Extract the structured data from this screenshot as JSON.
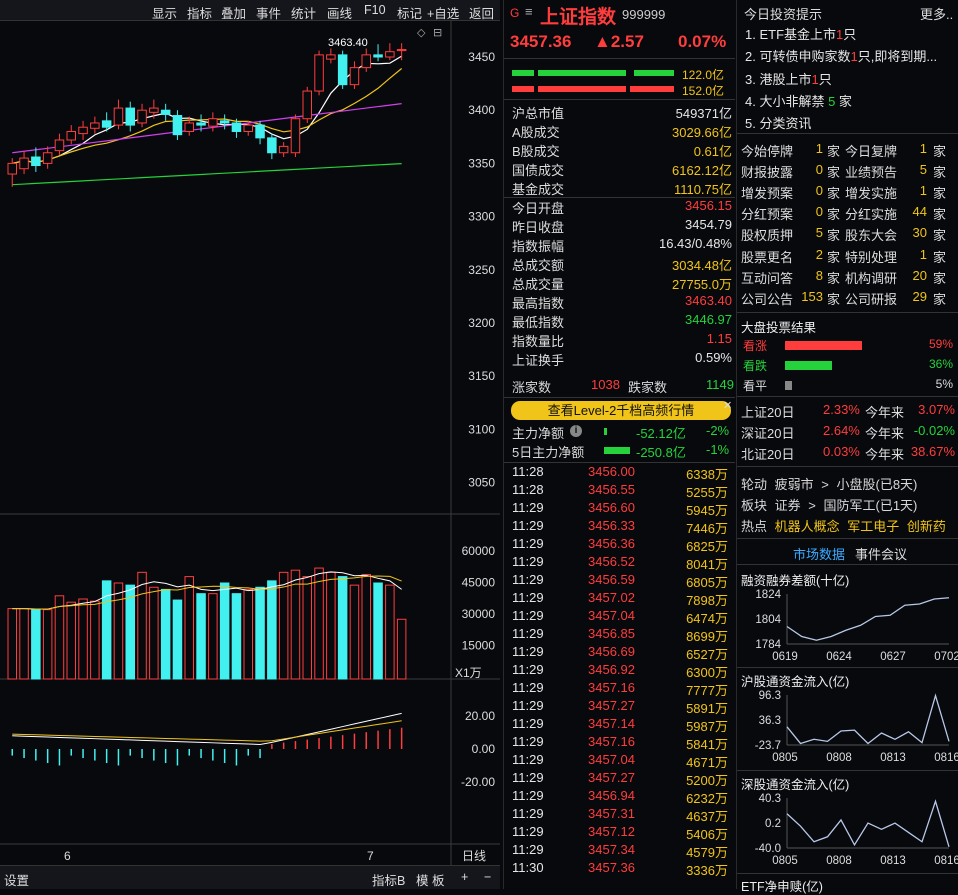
{
  "toolbar": {
    "items": [
      "显示",
      "指标",
      "叠加",
      "事件",
      "统计",
      "画线",
      "F10",
      "标记",
      "+自选",
      "返回"
    ]
  },
  "chart": {
    "price_axis": [
      "3450",
      "3400",
      "3350",
      "3300",
      "3250",
      "3200",
      "3150",
      "3100",
      "3050"
    ],
    "vol_axis": [
      "60000",
      "45000",
      "30000",
      "15000"
    ],
    "vol_unit": "X1万",
    "macd_axis": [
      "20.00",
      "0.00",
      "-20.00"
    ],
    "high_label": "3463.40",
    "x_labels": [
      "6",
      "7"
    ],
    "period": "日线",
    "candles": [
      {
        "o": 3340,
        "c": 3350,
        "h": 3355,
        "l": 3328
      },
      {
        "o": 3345,
        "c": 3355,
        "h": 3362,
        "l": 3340
      },
      {
        "o": 3356,
        "c": 3348,
        "h": 3365,
        "l": 3342
      },
      {
        "o": 3350,
        "c": 3360,
        "h": 3366,
        "l": 3345
      },
      {
        "o": 3362,
        "c": 3372,
        "h": 3378,
        "l": 3358
      },
      {
        "o": 3372,
        "c": 3380,
        "h": 3386,
        "l": 3368
      },
      {
        "o": 3378,
        "c": 3384,
        "h": 3390,
        "l": 3372
      },
      {
        "o": 3383,
        "c": 3388,
        "h": 3394,
        "l": 3378
      },
      {
        "o": 3390,
        "c": 3384,
        "h": 3398,
        "l": 3380
      },
      {
        "o": 3386,
        "c": 3402,
        "h": 3410,
        "l": 3382
      },
      {
        "o": 3402,
        "c": 3386,
        "h": 3408,
        "l": 3380
      },
      {
        "o": 3388,
        "c": 3400,
        "h": 3406,
        "l": 3384
      },
      {
        "o": 3398,
        "c": 3402,
        "h": 3410,
        "l": 3392
      },
      {
        "o": 3400,
        "c": 3396,
        "h": 3406,
        "l": 3390
      },
      {
        "o": 3395,
        "c": 3377,
        "h": 3400,
        "l": 3372
      },
      {
        "o": 3380,
        "c": 3388,
        "h": 3394,
        "l": 3376
      },
      {
        "o": 3388,
        "c": 3386,
        "h": 3396,
        "l": 3380
      },
      {
        "o": 3385,
        "c": 3392,
        "h": 3398,
        "l": 3380
      },
      {
        "o": 3390,
        "c": 3388,
        "h": 3396,
        "l": 3382
      },
      {
        "o": 3388,
        "c": 3380,
        "h": 3392,
        "l": 3374
      },
      {
        "o": 3380,
        "c": 3386,
        "h": 3390,
        "l": 3376
      },
      {
        "o": 3386,
        "c": 3374,
        "h": 3390,
        "l": 3368
      },
      {
        "o": 3374,
        "c": 3360,
        "h": 3378,
        "l": 3354
      },
      {
        "o": 3360,
        "c": 3366,
        "h": 3370,
        "l": 3356
      },
      {
        "o": 3360,
        "c": 3392,
        "h": 3396,
        "l": 3356
      },
      {
        "o": 3392,
        "c": 3418,
        "h": 3422,
        "l": 3388
      },
      {
        "o": 3418,
        "c": 3452,
        "h": 3456,
        "l": 3414
      },
      {
        "o": 3448,
        "c": 3452,
        "h": 3458,
        "l": 3444
      },
      {
        "o": 3452,
        "c": 3424,
        "h": 3456,
        "l": 3420
      },
      {
        "o": 3424,
        "c": 3440,
        "h": 3446,
        "l": 3420
      },
      {
        "o": 3440,
        "c": 3452,
        "h": 3458,
        "l": 3436
      },
      {
        "o": 3452,
        "c": 3450,
        "h": 3462,
        "l": 3446
      },
      {
        "o": 3450,
        "c": 3455,
        "h": 3463,
        "l": 3447
      },
      {
        "o": 3456,
        "c": 3457,
        "h": 3463,
        "l": 3447
      }
    ],
    "volumes": [
      33000,
      33000,
      32500,
      32500,
      39000,
      36000,
      37500,
      36500,
      46000,
      45000,
      44000,
      50000,
      43000,
      42000,
      37000,
      48000,
      40000,
      40000,
      45000,
      40000,
      42000,
      43000,
      46000,
      50000,
      51000,
      48000,
      52000,
      50000,
      48000,
      44000,
      49000,
      45000,
      44000,
      28000
    ]
  },
  "bottom": {
    "settings": "设置",
    "indexB": "指标B",
    "template": "模 板",
    "plus": "+",
    "minus": "−"
  },
  "index": {
    "flag": "G",
    "menu": "≡",
    "name": "上证指数",
    "code": "999999",
    "price": "3457.36",
    "change": "▲2.57",
    "pct": "0.07%",
    "bar1_val": "122.0亿",
    "bar2_val": "152.0亿"
  },
  "stats": [
    {
      "label": "沪总市值",
      "value": "549371亿",
      "color": "#e6e6e6"
    },
    {
      "label": "A股成交",
      "value": "3029.66亿",
      "color": "#f0c419"
    },
    {
      "label": "B股成交",
      "value": "0.61亿",
      "color": "#f0c419"
    },
    {
      "label": "国债成交",
      "value": "6162.12亿",
      "color": "#f0c419"
    },
    {
      "label": "基金成交",
      "value": "1110.75亿",
      "color": "#f0c419"
    },
    {
      "label": "今日开盘",
      "value": "3456.15",
      "color": "#ff3d3d"
    },
    {
      "label": "昨日收盘",
      "value": "3454.79",
      "color": "#e6e6e6"
    },
    {
      "label": "指数振幅",
      "value": "16.43/0.48%",
      "color": "#e6e6e6"
    },
    {
      "label": "总成交额",
      "value": "3034.48亿",
      "color": "#f0c419"
    },
    {
      "label": "总成交量",
      "value": "27755.0万",
      "color": "#f0c419"
    },
    {
      "label": "最高指数",
      "value": "3463.40",
      "color": "#ff3d3d"
    },
    {
      "label": "最低指数",
      "value": "3446.97",
      "color": "#25d23c"
    },
    {
      "label": "指数量比",
      "value": "1.15",
      "color": "#ff3d3d"
    },
    {
      "label": "上证换手",
      "value": "0.59%",
      "color": "#e6e6e6"
    }
  ],
  "updown": {
    "up_label": "涨家数",
    "up": "1038",
    "down_label": "跌家数",
    "down": "1149"
  },
  "level2": "查看Level-2千档高频行情",
  "flow": [
    {
      "label": "主力净额",
      "value": "-52.12亿",
      "pct": "-2%"
    },
    {
      "label": "5日主力净额",
      "value": "-250.8亿",
      "pct": "-1%"
    }
  ],
  "ticks": [
    {
      "t": "11:28",
      "p": "3456.00",
      "v": "6338万"
    },
    {
      "t": "11:28",
      "p": "3456.55",
      "v": "5255万"
    },
    {
      "t": "11:29",
      "p": "3456.60",
      "v": "5945万"
    },
    {
      "t": "11:29",
      "p": "3456.33",
      "v": "7446万"
    },
    {
      "t": "11:29",
      "p": "3456.36",
      "v": "6825万"
    },
    {
      "t": "11:29",
      "p": "3456.52",
      "v": "8041万"
    },
    {
      "t": "11:29",
      "p": "3456.59",
      "v": "6805万"
    },
    {
      "t": "11:29",
      "p": "3457.02",
      "v": "7898万"
    },
    {
      "t": "11:29",
      "p": "3457.04",
      "v": "6474万"
    },
    {
      "t": "11:29",
      "p": "3456.85",
      "v": "8699万"
    },
    {
      "t": "11:29",
      "p": "3456.69",
      "v": "6527万"
    },
    {
      "t": "11:29",
      "p": "3456.92",
      "v": "6300万"
    },
    {
      "t": "11:29",
      "p": "3457.16",
      "v": "7777万"
    },
    {
      "t": "11:29",
      "p": "3457.27",
      "v": "5891万"
    },
    {
      "t": "11:29",
      "p": "3457.14",
      "v": "5987万"
    },
    {
      "t": "11:29",
      "p": "3457.16",
      "v": "5841万"
    },
    {
      "t": "11:29",
      "p": "3457.04",
      "v": "4671万"
    },
    {
      "t": "11:29",
      "p": "3457.27",
      "v": "5200万"
    },
    {
      "t": "11:29",
      "p": "3456.94",
      "v": "6232万"
    },
    {
      "t": "11:29",
      "p": "3457.31",
      "v": "4637万"
    },
    {
      "t": "11:29",
      "p": "3457.12",
      "v": "5406万"
    },
    {
      "t": "11:29",
      "p": "3457.34",
      "v": "4579万"
    },
    {
      "t": "11:30",
      "p": "3457.36",
      "v": "3336万"
    }
  ],
  "right": {
    "news_title": "今日投资提示",
    "more": "更多..",
    "news": [
      {
        "pre": "1. ETF基金上市",
        "num": "1",
        "post": "只"
      },
      {
        "pre": "2. 可转债申购家数",
        "num": "1",
        "post": "只,即将到期..."
      },
      {
        "pre": "3. 港股上市",
        "num": "1",
        "post": "只"
      },
      {
        "pre": "4. 大小非解禁 ",
        "num": "5",
        "post": " 家",
        "numColor": "#25d23c"
      },
      {
        "pre": "5. 分类资讯",
        "num": "",
        "post": ""
      }
    ],
    "events": [
      {
        "l1": "今始停牌",
        "n1": "1",
        "l2": "今日复牌",
        "n2": "1"
      },
      {
        "l1": "财报披露",
        "n1": "0",
        "l2": "业绩预告",
        "n2": "5"
      },
      {
        "l1": "增发预案",
        "n1": "0",
        "l2": "增发实施",
        "n2": "1"
      },
      {
        "l1": "分红预案",
        "n1": "0",
        "l2": "分红实施",
        "n2": "44"
      },
      {
        "l1": "股权质押",
        "n1": "5",
        "l2": "股东大会",
        "n2": "30"
      },
      {
        "l1": "股票更名",
        "n1": "2",
        "l2": "特别处理",
        "n2": "1"
      },
      {
        "l1": "互动问答",
        "n1": "8",
        "l2": "机构调研",
        "n2": "20"
      },
      {
        "l1": "公司公告",
        "n1": "153",
        "l2": "公司研报",
        "n2": "29"
      }
    ],
    "event_unit": "家",
    "vote_title": "大盘投票结果",
    "votes": [
      {
        "label": "看涨",
        "pct": "59%",
        "frac": 0.59,
        "color": "#ff3d3d"
      },
      {
        "label": "看跌",
        "pct": "36%",
        "frac": 0.36,
        "color": "#25d23c"
      },
      {
        "label": "看平",
        "pct": "5%",
        "frac": 0.05,
        "color": "#888888"
      }
    ],
    "perf": [
      {
        "l": "上证20日",
        "a": "2.33%",
        "b_label": "今年来",
        "b": "3.07%",
        "bColor": "#ff3d3d"
      },
      {
        "l": "深证20日",
        "a": "2.64%",
        "b_label": "今年来",
        "b": "-0.02%",
        "bColor": "#25d23c"
      },
      {
        "l": "北证20日",
        "a": "0.03%",
        "b_label": "今年来",
        "b": "38.67%",
        "bColor": "#ff3d3d"
      }
    ],
    "rotate": {
      "label": "轮动",
      "a": "疲弱市",
      "arrow": ">",
      "b": "小盘股(已8天)"
    },
    "sector": {
      "label": "板块",
      "a": "证券",
      "arrow": ">",
      "b": "国防军工(已1天)"
    },
    "hot": {
      "label": "热点",
      "items": [
        "机器人概念",
        "军工电子",
        "创新药"
      ]
    },
    "tabs": [
      "市场数据",
      "事件会议"
    ],
    "margin": {
      "title": "融资融券差额(十亿)",
      "y": [
        "1824",
        "1804",
        "1784"
      ],
      "x": [
        "0619",
        "0624",
        "0627",
        "0702"
      ],
      "values": [
        1798,
        1790,
        1787,
        1790,
        1795,
        1799,
        1806,
        1807,
        1815,
        1816,
        1820,
        1821
      ]
    },
    "north_sh": {
      "title": "沪股通资金流入(亿)",
      "y": [
        "96.3",
        "36.3",
        "-23.7"
      ],
      "x": [
        "0805",
        "0808",
        "0813",
        "0816"
      ],
      "values": [
        20,
        -20,
        -10,
        -15,
        10,
        12,
        -20,
        5,
        -10,
        8,
        -18,
        95,
        -15
      ]
    },
    "north_sz": {
      "title": "深股通资金流入(亿)",
      "y": [
        "40.3",
        "0.2",
        "-40.0"
      ],
      "x": [
        "0805",
        "0808",
        "0813",
        "0816"
      ],
      "values": [
        15,
        -5,
        -30,
        -22,
        5,
        -35,
        0,
        -10,
        0,
        -15,
        -30,
        35,
        -38
      ]
    },
    "etf": "ETF净申赎(亿)"
  }
}
